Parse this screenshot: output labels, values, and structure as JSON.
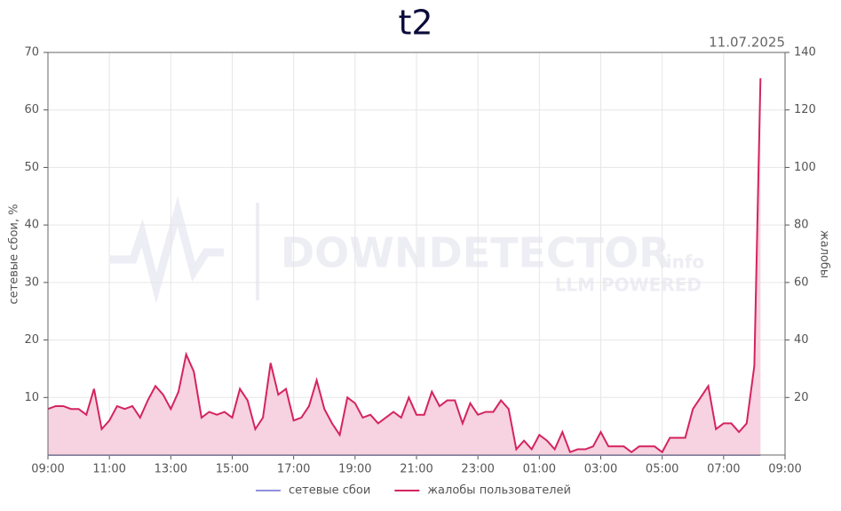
{
  "chart_data": {
    "type": "line",
    "title": "t2",
    "subtitle": "11.07.2025",
    "ylabel": "сетевые сбои, %",
    "y2label": "жалобы",
    "watermark": [
      "DOWNDETECTOR",
      ".info",
      "LLM POWERED"
    ],
    "x": [
      0,
      0.25,
      0.5,
      0.75,
      1,
      1.25,
      1.5,
      1.75,
      2,
      2.25,
      2.5,
      2.75,
      3,
      3.25,
      3.5,
      3.75,
      4,
      4.25,
      4.5,
      4.75,
      5,
      5.25,
      5.5,
      5.75,
      6,
      6.25,
      6.5,
      6.75,
      7,
      7.25,
      7.5,
      7.75,
      8,
      8.25,
      8.5,
      8.75,
      9,
      9.25,
      9.5,
      9.75,
      10,
      10.25,
      10.5,
      10.75,
      11,
      11.25,
      11.5,
      11.75,
      12,
      12.25,
      12.5,
      12.75,
      13,
      13.25,
      13.5,
      13.75,
      14,
      14.25,
      14.5,
      14.75,
      15,
      15.25,
      15.5,
      15.75,
      16,
      16.25,
      16.5,
      16.75,
      17,
      17.25,
      17.5,
      17.75,
      18,
      18.25,
      18.5,
      18.75,
      19,
      19.25,
      19.5,
      19.75,
      20,
      20.25,
      20.5,
      20.75,
      21,
      21.25,
      21.5,
      21.75,
      22,
      22.25,
      22.5,
      22.75,
      23,
      23.2
    ],
    "series": [
      {
        "name": "сетевые сбои",
        "color": "#8f8fe0",
        "axis": "y",
        "values": [
          0,
          0,
          0,
          0,
          0,
          0,
          0,
          0,
          0,
          0,
          0,
          0,
          0,
          0,
          0,
          0,
          0,
          0,
          0,
          0,
          0,
          0,
          0,
          0,
          0,
          0,
          0,
          0,
          0,
          0,
          0,
          0,
          0,
          0,
          0,
          0,
          0,
          0,
          0,
          0,
          0,
          0,
          0,
          0,
          0,
          0,
          0,
          0,
          0,
          0,
          0,
          0,
          0,
          0,
          0,
          0,
          0,
          0,
          0,
          0,
          0,
          0,
          0,
          0,
          0,
          0,
          0,
          0,
          0,
          0,
          0,
          0,
          0,
          0,
          0,
          0,
          0,
          0,
          0,
          0,
          0,
          0,
          0,
          0,
          0,
          0,
          0,
          0,
          0,
          0,
          0,
          0,
          0,
          0
        ]
      },
      {
        "name": "жалобы пользователей",
        "color": "#d4245f",
        "fill": "#f7d2e0",
        "axis": "y2",
        "values": [
          16,
          17,
          17,
          16,
          16,
          14,
          23,
          9,
          12,
          17,
          16,
          17,
          13,
          19,
          24,
          21,
          16,
          22,
          35,
          29,
          13,
          15,
          14,
          15,
          13,
          23,
          19,
          9,
          13,
          32,
          21,
          23,
          12,
          13,
          17,
          26,
          16,
          11,
          7,
          20,
          18,
          13,
          14,
          11,
          13,
          15,
          13,
          20,
          14,
          14,
          22,
          17,
          19,
          19,
          11,
          18,
          14,
          15,
          15,
          19,
          16,
          2,
          5,
          2,
          7,
          5,
          2,
          8,
          1,
          2,
          2,
          3,
          8,
          3,
          3,
          3,
          1,
          3,
          3,
          3,
          1,
          6,
          6,
          6,
          16,
          20,
          24,
          9,
          11,
          11,
          8,
          11,
          31,
          131
        ]
      }
    ],
    "xlim": [
      0,
      24
    ],
    "xticks": [
      {
        "value": 0,
        "label": "09:00"
      },
      {
        "value": 2,
        "label": "11:00"
      },
      {
        "value": 4,
        "label": "13:00"
      },
      {
        "value": 6,
        "label": "15:00"
      },
      {
        "value": 8,
        "label": "17:00"
      },
      {
        "value": 10,
        "label": "19:00"
      },
      {
        "value": 12,
        "label": "21:00"
      },
      {
        "value": 14,
        "label": "23:00"
      },
      {
        "value": 16,
        "label": "01:00"
      },
      {
        "value": 18,
        "label": "03:00"
      },
      {
        "value": 20,
        "label": "05:00"
      },
      {
        "value": 22,
        "label": "07:00"
      },
      {
        "value": 24,
        "label": "09:00"
      }
    ],
    "ylim": [
      0,
      70
    ],
    "yticks": [
      10,
      20,
      30,
      40,
      50,
      60,
      70
    ],
    "y2lim": [
      0,
      140
    ],
    "y2ticks": [
      20,
      40,
      60,
      80,
      100,
      120,
      140
    ],
    "grid": true,
    "legend": "bottom"
  }
}
